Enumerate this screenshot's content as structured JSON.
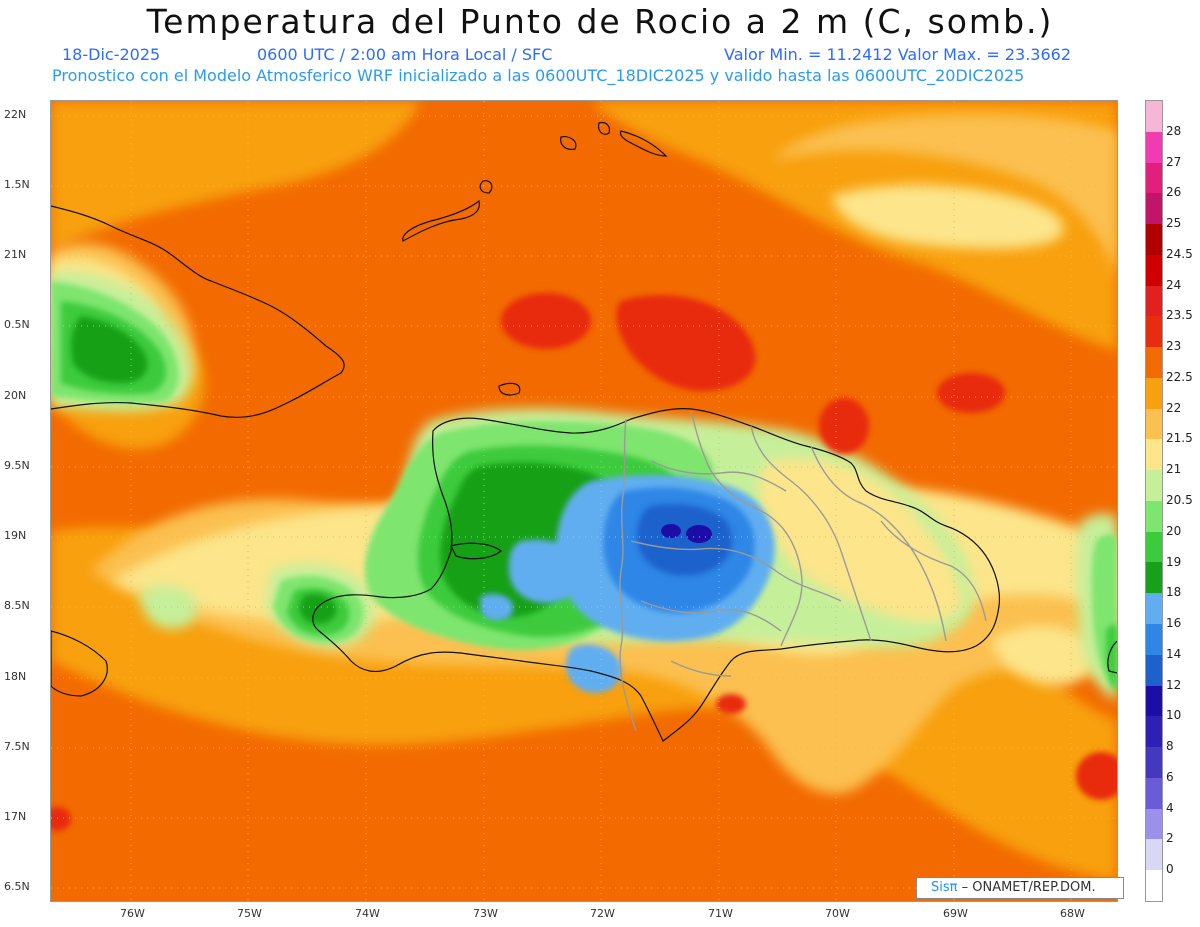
{
  "header": {
    "title": "Temperatura del Punto de Rocio a 2 m (C, somb.)",
    "date": "18-Dic-2025",
    "time_info": "0600 UTC / 2:00 am Hora Local / SFC",
    "min_max": "Valor Min. = 11.2412  Valor Max. = 23.3662",
    "model_info": "Pronostico con el Modelo Atmosferico WRF inicializado a las 0600UTC_18DIC2025 y valido hasta las  0600UTC_20DIC2025"
  },
  "axes": {
    "lat_labels": [
      "22N",
      "1.5N",
      "21N",
      "0.5N",
      "20N",
      "9.5N",
      "19N",
      "8.5N",
      "18N",
      "7.5N",
      "17N",
      "6.5N"
    ],
    "lon_labels": [
      "76W",
      "75W",
      "74W",
      "73W",
      "72W",
      "71W",
      "70W",
      "69W",
      "68W"
    ]
  },
  "colorbar": {
    "labels": [
      "28",
      "27",
      "26",
      "25",
      "24.5",
      "24",
      "23.5",
      "23",
      "22.5",
      "22",
      "21.5",
      "21",
      "20.5",
      "20",
      "19",
      "18",
      "16",
      "14",
      "12",
      "10",
      "8",
      "6",
      "4",
      "2",
      "0"
    ],
    "colors": [
      "#f7b6d6",
      "#f03cb0",
      "#e0207c",
      "#c0156a",
      "#b00000",
      "#d00000",
      "#e32020",
      "#e82c10",
      "#f26a00",
      "#f8a010",
      "#fbc050",
      "#fce58a",
      "#c6ef9a",
      "#7ee56e",
      "#3ccb3c",
      "#18a018",
      "#60aef0",
      "#2f86e6",
      "#1d62cc",
      "#1b0da6",
      "#2e20b4",
      "#4538c0",
      "#6a5cd6",
      "#9c90ec",
      "#d8d8f6",
      "#ffffff"
    ]
  },
  "credit": {
    "sis": "Sisπ",
    "org": " – ONAMET/REP.DOM."
  }
}
